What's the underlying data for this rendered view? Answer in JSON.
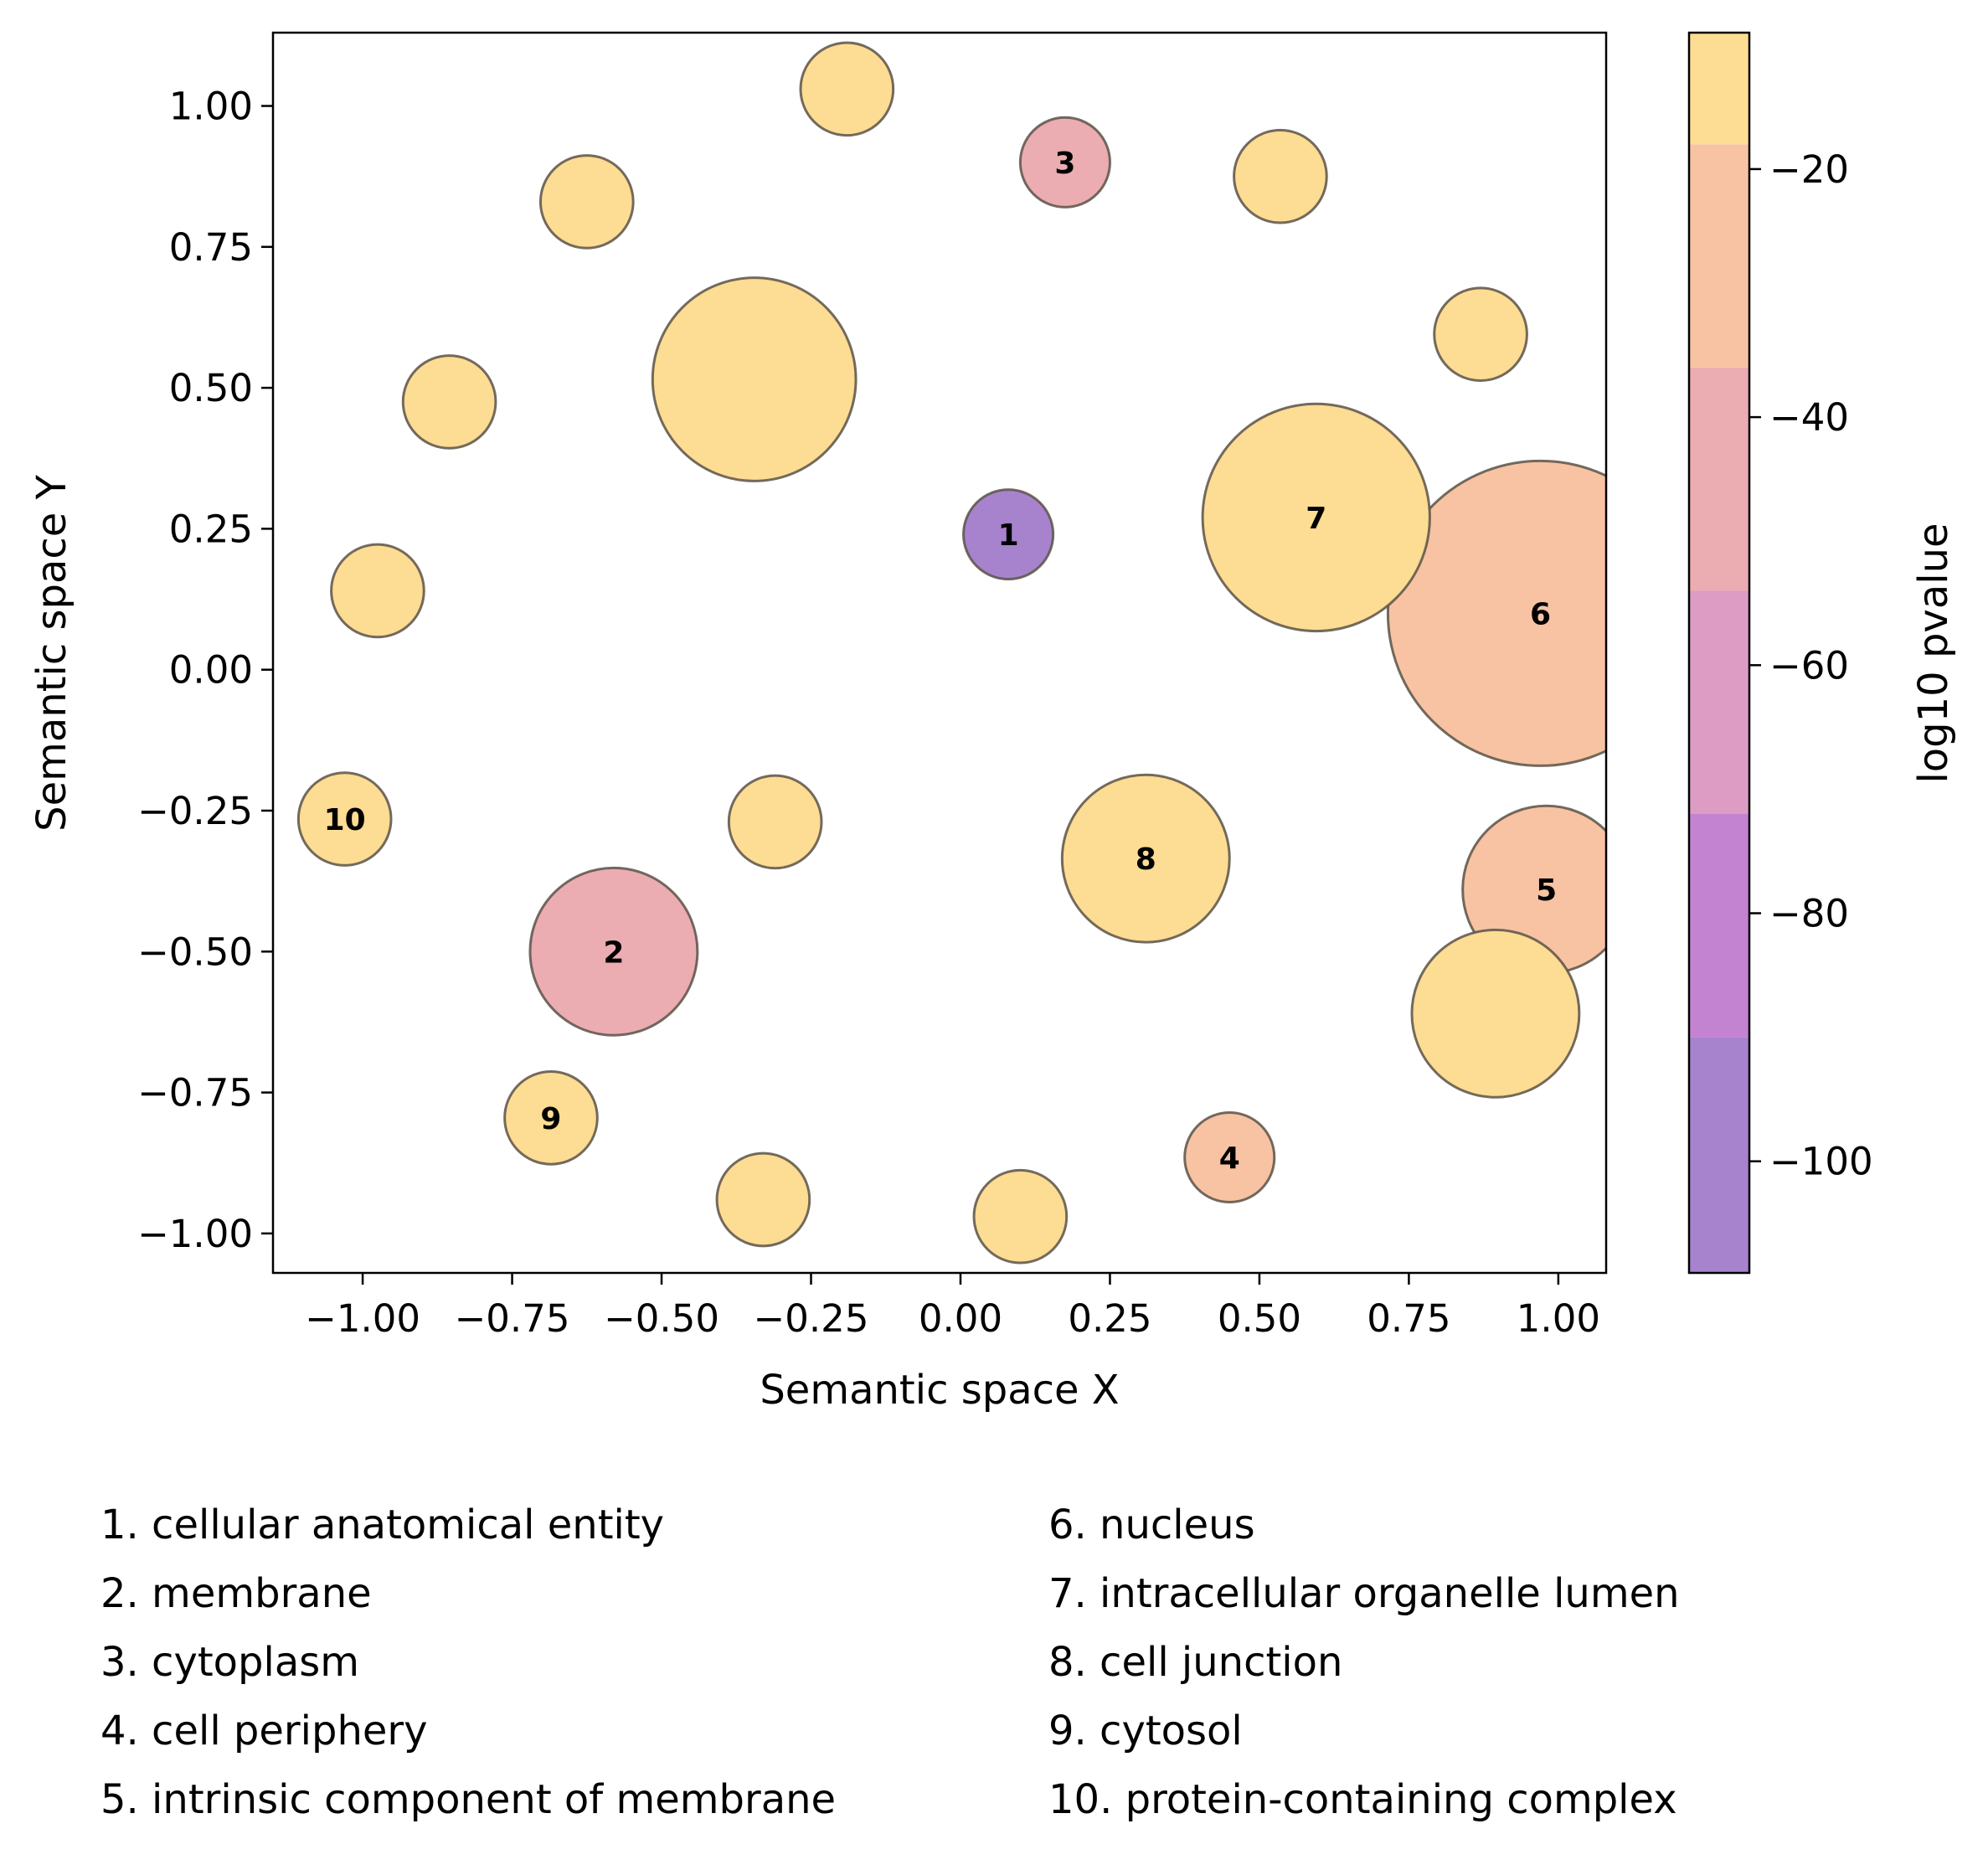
{
  "chart_data": {
    "type": "scatter",
    "xlabel": "Semantic space X",
    "ylabel": "Semantic space Y",
    "xlim": [
      -1.15,
      1.08
    ],
    "ylim": [
      -1.07,
      1.13
    ],
    "xticks": [
      "−1.00",
      "−0.75",
      "−0.50",
      "−0.25",
      "0.00",
      "0.25",
      "0.50",
      "0.75",
      "1.00"
    ],
    "xtick_values": [
      -1.0,
      -0.75,
      -0.5,
      -0.25,
      0.0,
      0.25,
      0.5,
      0.75,
      1.0
    ],
    "yticks": [
      "1.00",
      "0.75",
      "0.50",
      "0.25",
      "0.00",
      "−0.25",
      "−0.50",
      "−0.75",
      "−1.00"
    ],
    "ytick_values": [
      1.0,
      0.75,
      0.5,
      0.25,
      0.0,
      -0.25,
      -0.5,
      -0.75,
      -1.0
    ],
    "grid": false,
    "colorbar": {
      "label": "log10 pvalue",
      "range": [
        -109,
        -9
      ],
      "ticks": [
        "−20",
        "−40",
        "−60",
        "−80",
        "−100"
      ],
      "tick_values": [
        -20,
        -40,
        -60,
        -80,
        -100
      ],
      "bands": [
        {
          "from": -109,
          "to": -90,
          "color": "#a783ce"
        },
        {
          "from": -90,
          "to": -72,
          "color": "#c383d1"
        },
        {
          "from": -72,
          "to": -54,
          "color": "#dc9cc3"
        },
        {
          "from": -54,
          "to": -36,
          "color": "#ebacb2"
        },
        {
          "from": -36,
          "to": -18,
          "color": "#f7c3a3"
        },
        {
          "from": -18,
          "to": -9,
          "color": "#fddc93"
        }
      ]
    },
    "points": [
      {
        "label": "1",
        "x": 0.08,
        "y": 0.24,
        "size": 0.15,
        "color": "#a783ce"
      },
      {
        "label": "2",
        "x": -0.58,
        "y": -0.5,
        "size": 0.28,
        "color": "#ebacb2"
      },
      {
        "label": "3",
        "x": 0.175,
        "y": 0.9,
        "size": 0.15,
        "color": "#ebacb2"
      },
      {
        "label": "4",
        "x": 0.45,
        "y": -0.865,
        "size": 0.15,
        "color": "#f7c3a3"
      },
      {
        "label": "5",
        "x": 0.98,
        "y": -0.39,
        "size": 0.28,
        "color": "#f7c3a3"
      },
      {
        "label": "6",
        "x": 0.97,
        "y": 0.1,
        "size": 0.51,
        "color": "#f7c3a3"
      },
      {
        "label": "7",
        "x": 0.595,
        "y": 0.27,
        "size": 0.38,
        "color": "#fddc93"
      },
      {
        "label": "8",
        "x": 0.31,
        "y": -0.335,
        "size": 0.28,
        "color": "#fddc93"
      },
      {
        "label": "9",
        "x": -0.685,
        "y": -0.795,
        "size": 0.155,
        "color": "#fddc93"
      },
      {
        "label": "10",
        "x": -1.03,
        "y": -0.265,
        "size": 0.155,
        "color": "#fddc93"
      },
      {
        "label": "",
        "x": -0.19,
        "y": 1.03,
        "size": 0.155,
        "color": "#fddc93"
      },
      {
        "label": "",
        "x": -0.625,
        "y": 0.83,
        "size": 0.155,
        "color": "#fddc93"
      },
      {
        "label": "",
        "x": 0.535,
        "y": 0.875,
        "size": 0.155,
        "color": "#fddc93"
      },
      {
        "label": "",
        "x": 0.87,
        "y": 0.595,
        "size": 0.155,
        "color": "#fddc93"
      },
      {
        "label": "",
        "x": -0.345,
        "y": 0.515,
        "size": 0.34,
        "color": "#fddc93"
      },
      {
        "label": "",
        "x": -0.855,
        "y": 0.475,
        "size": 0.155,
        "color": "#fddc93"
      },
      {
        "label": "",
        "x": -0.975,
        "y": 0.14,
        "size": 0.155,
        "color": "#fddc93"
      },
      {
        "label": "",
        "x": -0.31,
        "y": -0.27,
        "size": 0.155,
        "color": "#fddc93"
      },
      {
        "label": "",
        "x": 0.895,
        "y": -0.61,
        "size": 0.28,
        "color": "#fddc93"
      },
      {
        "label": "",
        "x": -0.33,
        "y": -0.94,
        "size": 0.155,
        "color": "#fddc93"
      },
      {
        "label": "",
        "x": 0.1,
        "y": -0.97,
        "size": 0.155,
        "color": "#fddc93"
      }
    ],
    "legend": [
      "1. cellular anatomical entity",
      "2. membrane",
      "3. cytoplasm",
      "4. cell periphery",
      "5. intrinsic component of membrane",
      "6. nucleus",
      "7. intracellular organelle lumen",
      "8. cell junction",
      "9. cytosol",
      "10. protein-containing complex"
    ]
  }
}
